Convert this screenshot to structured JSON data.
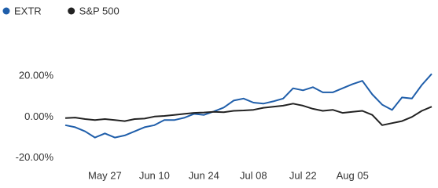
{
  "chart_data": {
    "type": "line",
    "categories": [
      null,
      null,
      null,
      null,
      "May 27",
      null,
      null,
      null,
      null,
      "Jun 10",
      null,
      null,
      null,
      null,
      "Jun 24",
      null,
      null,
      null,
      null,
      "Jul 08",
      null,
      null,
      null,
      null,
      "Jul 22",
      null,
      null,
      null,
      null,
      "Aug 05",
      null,
      null,
      null,
      null,
      null,
      null,
      null,
      null
    ],
    "series": [
      {
        "name": "EXTR",
        "color": "#1f5eaa",
        "values": [
          -4,
          -5,
          -7,
          -10,
          -8,
          -10,
          -9,
          -7,
          -5,
          -4,
          -1.5,
          -1.5,
          -0.4,
          1.5,
          1,
          2.7,
          4.6,
          8,
          9,
          7,
          6.5,
          7.6,
          9,
          14,
          13,
          14.5,
          12,
          12,
          14,
          16,
          17.6,
          11,
          6,
          3.4,
          9.5,
          9,
          15.6,
          21
        ]
      },
      {
        "name": "S&P 500",
        "color": "#222222",
        "values": [
          -0.5,
          -0.3,
          -1,
          -1.5,
          -1,
          -1.5,
          -2,
          -1,
          -0.8,
          0.2,
          0.5,
          1,
          1.5,
          2,
          2.2,
          2.5,
          2.3,
          3,
          3.2,
          3.5,
          4.5,
          5,
          5.5,
          6.5,
          5.5,
          4,
          3,
          3.5,
          2,
          2.5,
          3,
          1,
          -4,
          -3,
          -2,
          0,
          3,
          5
        ]
      }
    ],
    "ylim": [
      -22,
      36
    ],
    "yticks": [
      {
        "value": -20,
        "label": "-20.00%"
      },
      {
        "value": 0,
        "label": "0.00%"
      },
      {
        "value": 20,
        "label": "20.00%"
      }
    ],
    "legend": "top-left"
  }
}
